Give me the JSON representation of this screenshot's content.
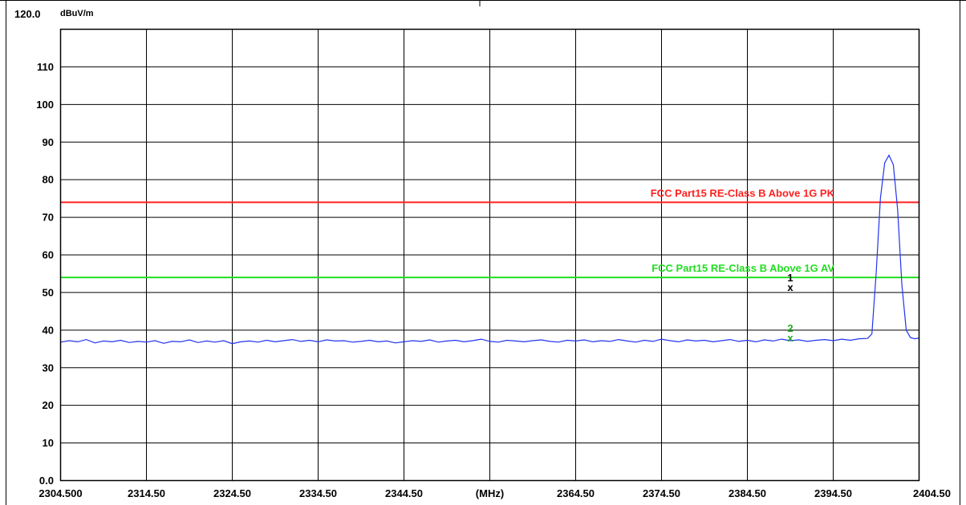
{
  "chart_data": {
    "type": "line",
    "title": "",
    "ylabel": "dBuV/m",
    "xlabel": "(MHz)",
    "xlim": [
      2304.5,
      2404.5
    ],
    "ylim": [
      0,
      120
    ],
    "y_top_label": "120.0",
    "y_ticks": [
      {
        "value": 0,
        "label": "0.0"
      },
      {
        "value": 10,
        "label": "10"
      },
      {
        "value": 20,
        "label": "20"
      },
      {
        "value": 30,
        "label": "30"
      },
      {
        "value": 40,
        "label": "40"
      },
      {
        "value": 50,
        "label": "50"
      },
      {
        "value": 60,
        "label": "60"
      },
      {
        "value": 70,
        "label": "70"
      },
      {
        "value": 80,
        "label": "80"
      },
      {
        "value": 90,
        "label": "90"
      },
      {
        "value": 100,
        "label": "100"
      },
      {
        "value": 110,
        "label": "110"
      }
    ],
    "x_ticks": [
      {
        "value": 2304.5,
        "label": "2304.500"
      },
      {
        "value": 2314.5,
        "label": "2314.50"
      },
      {
        "value": 2324.5,
        "label": "2324.50"
      },
      {
        "value": 2334.5,
        "label": "2334.50"
      },
      {
        "value": 2344.5,
        "label": "2344.50"
      },
      {
        "value": 2354.5,
        "label": "(MHz)"
      },
      {
        "value": 2364.5,
        "label": "2364.50"
      },
      {
        "value": 2374.5,
        "label": "2374.50"
      },
      {
        "value": 2384.5,
        "label": "2384.50"
      },
      {
        "value": 2394.5,
        "label": "2394.50"
      },
      {
        "value": 2404.5,
        "label": "2404.50"
      }
    ],
    "grid": true,
    "limit_lines": [
      {
        "name": "FCC Part15 RE-Class B Above 1G PK",
        "value": 74,
        "color": "#ff2020"
      },
      {
        "name": "FCC Part15 RE-Class B Above 1G AV",
        "value": 54,
        "color": "#22dd22"
      }
    ],
    "series": [
      {
        "color": "#2233ee",
        "x": [
          2304.5,
          2305.5,
          2306.5,
          2307.5,
          2308.5,
          2309.5,
          2310.5,
          2311.5,
          2312.5,
          2313.5,
          2314.5,
          2315.5,
          2316.5,
          2317.5,
          2318.5,
          2319.5,
          2320.5,
          2321.5,
          2322.5,
          2323.5,
          2324.5,
          2325.5,
          2326.5,
          2327.5,
          2328.5,
          2329.5,
          2330.5,
          2331.5,
          2332.5,
          2333.5,
          2334.5,
          2335.5,
          2336.5,
          2337.5,
          2338.5,
          2339.5,
          2340.5,
          2341.5,
          2342.5,
          2343.5,
          2344.5,
          2345.5,
          2346.5,
          2347.5,
          2348.5,
          2349.5,
          2350.5,
          2351.5,
          2352.5,
          2353.5,
          2354.5,
          2355.5,
          2356.5,
          2357.5,
          2358.5,
          2359.5,
          2360.5,
          2361.5,
          2362.5,
          2363.5,
          2364.5,
          2365.5,
          2366.5,
          2367.5,
          2368.5,
          2369.5,
          2370.5,
          2371.5,
          2372.5,
          2373.5,
          2374.5,
          2375.5,
          2376.5,
          2377.5,
          2378.5,
          2379.5,
          2380.5,
          2381.5,
          2382.5,
          2383.5,
          2384.5,
          2385.5,
          2386.5,
          2387.5,
          2388.5,
          2389.5,
          2390.5,
          2391.5,
          2392.5,
          2393.5,
          2394.5,
          2395.5,
          2396.5,
          2397.5,
          2398.5,
          2399.0,
          2399.5,
          2400.0,
          2400.5,
          2401.0,
          2401.5,
          2402.0,
          2402.5,
          2403.0,
          2403.5,
          2404.0,
          2404.5
        ],
        "y": [
          36.8,
          37.2,
          36.9,
          37.5,
          36.6,
          37.1,
          36.9,
          37.3,
          36.7,
          37.0,
          36.8,
          37.2,
          36.5,
          37.0,
          36.9,
          37.4,
          36.7,
          37.1,
          36.8,
          37.2,
          36.4,
          36.9,
          37.1,
          36.8,
          37.3,
          36.9,
          37.2,
          37.5,
          37.0,
          37.3,
          36.9,
          37.4,
          37.1,
          37.2,
          36.8,
          37.0,
          37.3,
          36.9,
          37.1,
          36.6,
          36.9,
          37.2,
          37.0,
          37.4,
          36.8,
          37.1,
          37.3,
          36.9,
          37.2,
          37.6,
          37.0,
          36.8,
          37.3,
          37.1,
          36.9,
          37.2,
          37.4,
          37.0,
          36.8,
          37.3,
          37.1,
          37.4,
          36.9,
          37.2,
          37.0,
          37.5,
          37.1,
          36.8,
          37.3,
          37.0,
          37.6,
          37.2,
          36.9,
          37.4,
          37.1,
          37.3,
          36.9,
          37.2,
          37.5,
          37.0,
          37.3,
          36.9,
          37.4,
          37.1,
          37.6,
          37.2,
          37.4,
          37.0,
          37.3,
          37.5,
          37.2,
          37.6,
          37.3,
          37.7,
          37.8,
          39.0,
          55.0,
          75.0,
          84.5,
          86.5,
          84.0,
          72.0,
          52.0,
          40.0,
          38.0,
          37.7,
          37.9
        ]
      }
    ],
    "markers": [
      {
        "label": "1",
        "x": 2389.5,
        "y": 51.5,
        "color": "#000000"
      },
      {
        "label": "2",
        "x": 2389.5,
        "y": 38.0,
        "color": "#22aa22"
      }
    ]
  }
}
